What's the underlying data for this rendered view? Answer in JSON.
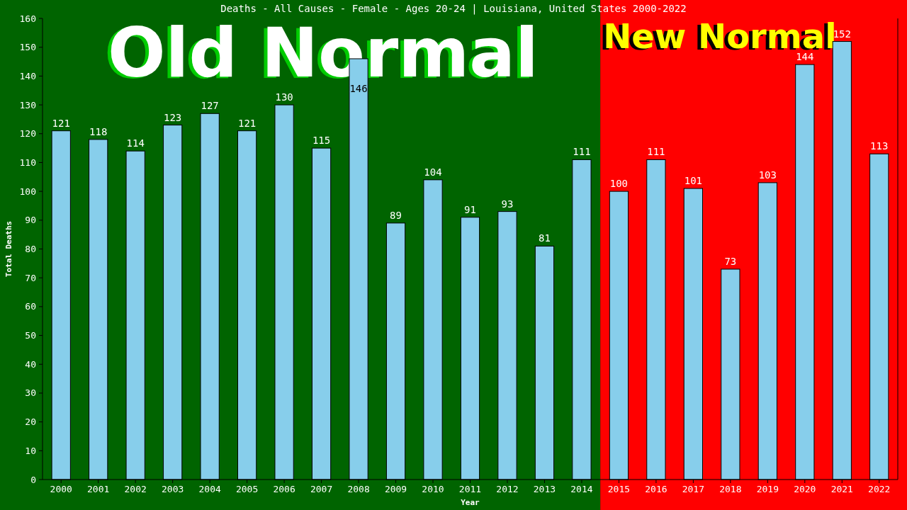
{
  "chart_data": {
    "type": "bar",
    "title": "Deaths - All Causes - Female - Ages 20-24 | Louisiana, United States 2000-2022",
    "xlabel": "Year",
    "ylabel": "Total Deaths",
    "categories": [
      "2000",
      "2001",
      "2002",
      "2003",
      "2004",
      "2005",
      "2006",
      "2007",
      "2008",
      "2009",
      "2010",
      "2011",
      "2012",
      "2013",
      "2014",
      "2015",
      "2016",
      "2017",
      "2018",
      "2019",
      "2020",
      "2021",
      "2022"
    ],
    "values": [
      121,
      118,
      114,
      123,
      127,
      121,
      130,
      115,
      146,
      89,
      104,
      91,
      93,
      81,
      111,
      100,
      111,
      101,
      73,
      103,
      144,
      152,
      113
    ],
    "color": "#87ceeb",
    "ylim": [
      0,
      160
    ],
    "yticks": [
      0,
      10,
      20,
      30,
      40,
      50,
      60,
      70,
      80,
      90,
      100,
      110,
      120,
      130,
      140,
      150,
      160
    ],
    "data_labels": true,
    "bands": [
      {
        "axis": "x",
        "from": "2000",
        "to": "2014",
        "label": "Old Normal",
        "color": "#006400"
      },
      {
        "axis": "x",
        "from": "2015",
        "to": "2022",
        "label": "New Normal",
        "color": "#ff0000"
      }
    ]
  }
}
